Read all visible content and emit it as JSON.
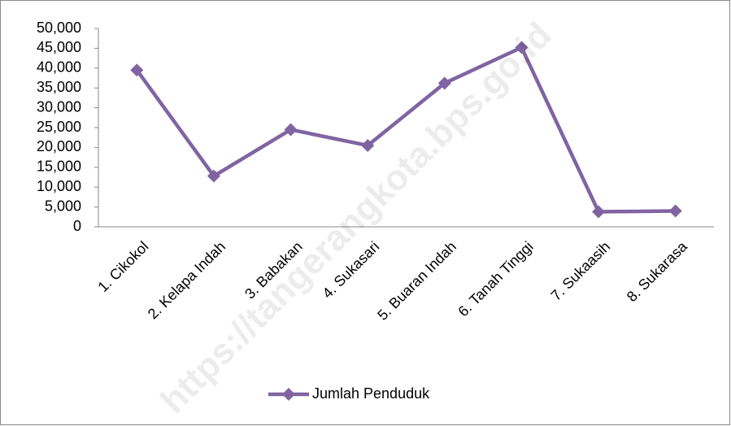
{
  "chart_data": {
    "type": "line",
    "categories": [
      "1. Cikokol",
      "2. Kelapa Indah",
      "3. Babakan",
      "4. Sukasari",
      "5. Buaran Indah",
      "6. Tanah Tinggi",
      "7. Sukaasih",
      "8. Sukarasa"
    ],
    "series": [
      {
        "name": "Jumlah Penduduk",
        "color": "#8064a2",
        "values": [
          39500,
          12800,
          24500,
          20500,
          36200,
          45200,
          3800,
          4000
        ]
      }
    ],
    "ylim": [
      0,
      50000
    ],
    "yticks": [
      0,
      {
        "value": 5000,
        "label": "5,000"
      },
      {
        "value": 10000,
        "label": "10,000"
      },
      {
        "value": 15000,
        "label": "15,000"
      },
      {
        "value": 20000,
        "label": "20,000"
      },
      {
        "value": 25000,
        "label": "25,000"
      },
      {
        "value": 30000,
        "label": "30,000"
      },
      {
        "value": 35000,
        "label": "35,000"
      },
      {
        "value": 40000,
        "label": "40,000"
      },
      {
        "value": 45000,
        "label": "45,000"
      },
      {
        "value": 50000,
        "label": "50,000"
      }
    ],
    "legend": "bottom",
    "watermark": "https://tangerangkota.bps.go.id"
  }
}
